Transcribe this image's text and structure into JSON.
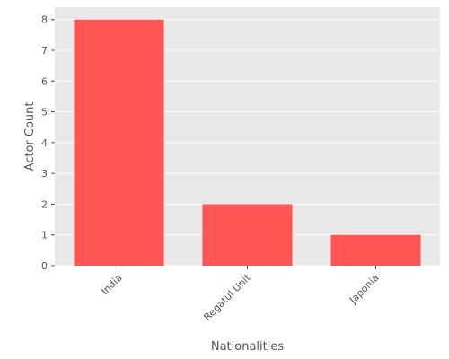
{
  "chart_data": {
    "type": "bar",
    "title": "",
    "xlabel": "Nationalities",
    "ylabel": "Actor Count",
    "categories": [
      "India",
      "Regatul Unit",
      "Japonia"
    ],
    "values": [
      8,
      2,
      1
    ],
    "ylim": [
      0,
      8.4
    ],
    "yticks": [
      0,
      1,
      2,
      3,
      4,
      5,
      6,
      7,
      8
    ],
    "grid": true,
    "legend": "none",
    "colors": {
      "bar": "#ff5555",
      "panel": "#e9e9e9",
      "grid": "#ffffff",
      "text": "#555555",
      "tick": "#555555"
    }
  }
}
